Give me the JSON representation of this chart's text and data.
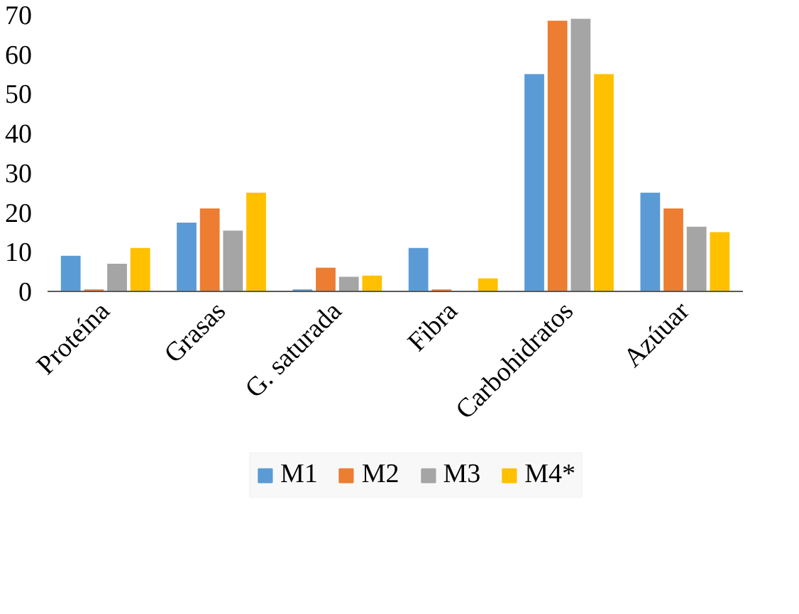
{
  "chart_data": {
    "type": "bar",
    "categories": [
      "Proteína",
      "Grasas",
      "G. saturada",
      "Fibra",
      "Carbohidratos",
      "Azúuar"
    ],
    "series": [
      {
        "name": "M1",
        "color": "#5b9bd5",
        "values": [
          9,
          17.4,
          0.5,
          11,
          55,
          25
        ]
      },
      {
        "name": "M2",
        "color": "#ed7d31",
        "values": [
          0.5,
          21,
          6,
          0.5,
          68.5,
          21
        ]
      },
      {
        "name": "M3",
        "color": "#a5a5a5",
        "values": [
          7,
          15.4,
          3.7,
          null,
          69,
          16.4
        ]
      },
      {
        "name": "M4*",
        "color": "#ffc000",
        "values": [
          11,
          25,
          4,
          3.3,
          55,
          15
        ]
      }
    ],
    "ylim": [
      0,
      70
    ],
    "yticks": [
      0,
      10,
      20,
      30,
      40,
      50,
      60,
      70
    ],
    "grid": false,
    "legend": "bottom"
  }
}
